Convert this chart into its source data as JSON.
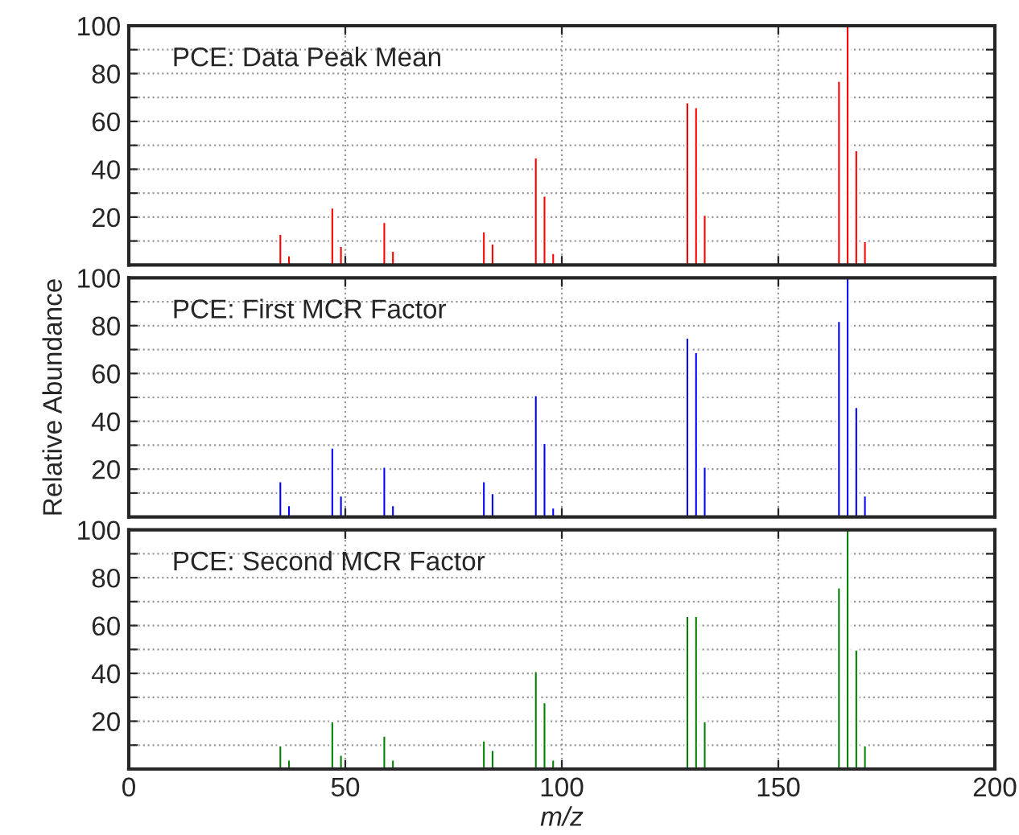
{
  "chart_data": [
    {
      "type": "bar",
      "title": "PCE: Data Peak Mean",
      "x": [
        35,
        37,
        47,
        49,
        59,
        61,
        82,
        84,
        94,
        96,
        98,
        129,
        131,
        133,
        164,
        166,
        168,
        170
      ],
      "series": [
        {
          "color": "#ff0000",
          "values": [
            13,
            4,
            24,
            8,
            18,
            6,
            14,
            9,
            45,
            29,
            5,
            68,
            66,
            21,
            77,
            100,
            48,
            10
          ]
        }
      ],
      "xlim": [
        0,
        200
      ],
      "xticks": [
        0,
        50,
        100,
        150,
        200
      ],
      "ylim": [
        0,
        100
      ],
      "yticks": [
        {
          "value": 10,
          "label": null
        },
        20,
        {
          "value": 30,
          "label": null
        },
        40,
        {
          "value": 50,
          "label": null
        },
        60,
        {
          "value": 70,
          "label": null
        },
        80,
        {
          "value": 90,
          "label": null
        },
        100
      ],
      "grid": true,
      "tick_labels": "y"
    },
    {
      "type": "bar",
      "title": "PCE: First MCR Factor",
      "ylabel": "Relative Abundance",
      "x": [
        35,
        37,
        47,
        49,
        59,
        61,
        82,
        84,
        94,
        96,
        98,
        129,
        131,
        133,
        164,
        166,
        168,
        170
      ],
      "series": [
        {
          "color": "#0000ff",
          "values": [
            15,
            5,
            29,
            9,
            21,
            5,
            15,
            10,
            51,
            31,
            4,
            75,
            69,
            21,
            82,
            100,
            46,
            9
          ]
        }
      ],
      "xlim": [
        0,
        200
      ],
      "xticks": [
        0,
        50,
        100,
        150,
        200
      ],
      "ylim": [
        0,
        100
      ],
      "yticks": [
        {
          "value": 10,
          "label": null
        },
        20,
        {
          "value": 30,
          "label": null
        },
        40,
        {
          "value": 50,
          "label": null
        },
        60,
        {
          "value": 70,
          "label": null
        },
        80,
        {
          "value": 90,
          "label": null
        },
        100
      ],
      "grid": true,
      "tick_labels": "y"
    },
    {
      "type": "bar",
      "title": "PCE: Second MCR Factor",
      "xlabel": "m/z",
      "x": [
        35,
        37,
        47,
        49,
        59,
        61,
        82,
        84,
        94,
        96,
        98,
        129,
        131,
        133,
        164,
        166,
        168,
        170
      ],
      "series": [
        {
          "color": "#008000",
          "values": [
            10,
            4,
            20,
            6,
            14,
            4,
            12,
            8,
            41,
            28,
            4,
            64,
            64,
            20,
            76,
            100,
            50,
            10
          ]
        }
      ],
      "xlim": [
        0,
        200
      ],
      "xticks": [
        0,
        50,
        100,
        150,
        200
      ],
      "ylim": [
        0,
        100
      ],
      "yticks": [
        {
          "value": 10,
          "label": null
        },
        20,
        {
          "value": 30,
          "label": null
        },
        40,
        {
          "value": 50,
          "label": null
        },
        60,
        {
          "value": 70,
          "label": null
        },
        80,
        {
          "value": 90,
          "label": null
        },
        100
      ],
      "grid": true
    }
  ]
}
